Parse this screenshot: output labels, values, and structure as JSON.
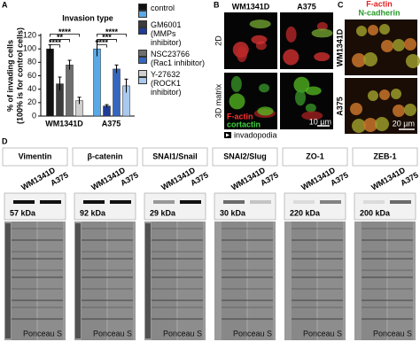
{
  "panels": {
    "a": "A",
    "b": "B",
    "c": "C",
    "d": "D"
  },
  "chart_data": {
    "type": "bar",
    "title": "Invasion type",
    "y_label": [
      "% of invading cells",
      "(100% is for control cells)"
    ],
    "categories": [
      "WM1341D",
      "A375"
    ],
    "series": [
      {
        "name": "control",
        "colors": [
          "#111111",
          "#5aa9e6"
        ],
        "values": [
          100,
          100
        ],
        "errors": [
          6,
          11
        ]
      },
      {
        "name": "GM6001 (MMPs inhibitor)",
        "colors": [
          "#3c3c3c",
          "#1f3c96"
        ],
        "values": [
          48,
          15
        ],
        "errors": [
          10,
          2
        ]
      },
      {
        "name": "NSC23766 (Rac1 inhibitor)",
        "colors": [
          "#6e6e6e",
          "#3466c0"
        ],
        "values": [
          76,
          70
        ],
        "errors": [
          7,
          6
        ]
      },
      {
        "name": "Y-27632 (ROCK1 inhibitor)",
        "colors": [
          "#cfcfcf",
          "#a9c9ee"
        ],
        "values": [
          23,
          45
        ],
        "errors": [
          5,
          10
        ]
      }
    ],
    "ylim": [
      0,
      120
    ],
    "yticks": [
      0,
      20,
      40,
      60,
      80,
      100,
      120
    ],
    "annotations": [
      "****",
      "**",
      "****",
      "****",
      "***",
      "****"
    ]
  },
  "panel_b": {
    "columns": [
      "WM1341D",
      "A375"
    ],
    "rows": [
      "2D",
      "3D matrix"
    ],
    "stains": [
      "F-actin",
      "cortactin"
    ],
    "scale": "10 µm",
    "legend": "invadopodia"
  },
  "panel_c": {
    "stains": [
      "F-actin",
      "N-cadherin"
    ],
    "rows": [
      "WM1341D",
      "A375"
    ],
    "scale": "20 µm"
  },
  "panel_d": {
    "lanes": [
      "WM1341D",
      "A375"
    ],
    "stain": "Ponceau S",
    "blots": [
      {
        "name": "Vimentin",
        "kda": "57 kDa"
      },
      {
        "name": "β-catenin",
        "kda": "92 kDa"
      },
      {
        "name": "SNAI1/Snail",
        "kda": "29 kDa"
      },
      {
        "name": "SNAI2/Slug",
        "kda": "30 kDa"
      },
      {
        "name": "ZO-1",
        "kda": "220 kDa"
      },
      {
        "name": "ZEB-1",
        "kda": "200 kDa"
      }
    ]
  }
}
